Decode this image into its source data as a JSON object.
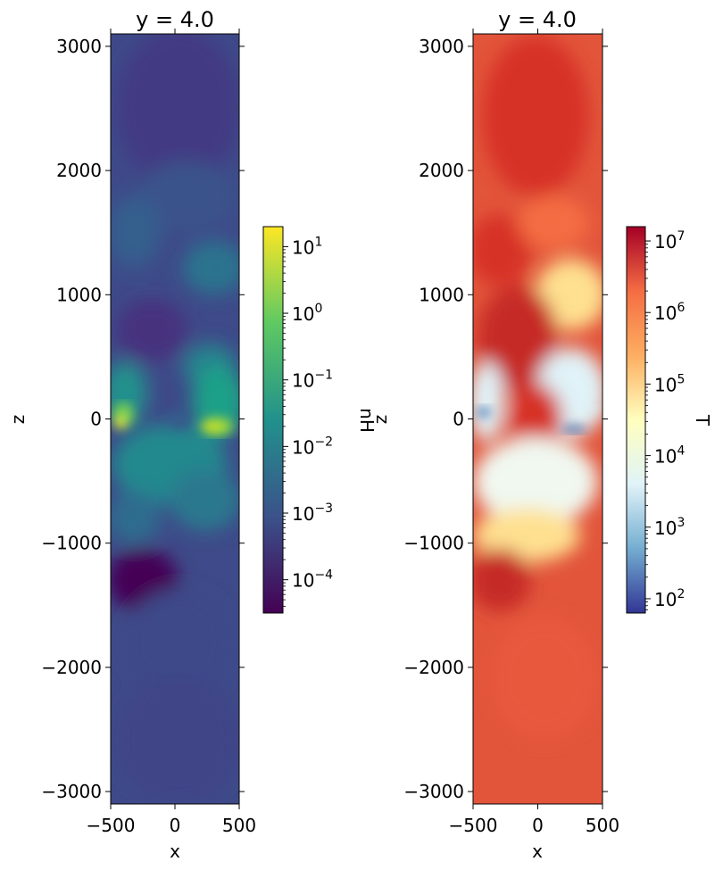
{
  "chart_data": [
    {
      "type": "heatmap",
      "title": "y = 4.0",
      "xlabel": "x",
      "ylabel": "z",
      "xlim": [
        -500,
        500
      ],
      "ylim": [
        -3100,
        3100
      ],
      "xticks": [
        -500,
        0,
        500
      ],
      "yticks": [
        -3000,
        -2000,
        -1000,
        0,
        1000,
        2000,
        3000
      ],
      "colorbar": {
        "label": "nH",
        "scale": "log",
        "range_exp": [
          -4.5,
          1.3
        ],
        "ticks_exp": [
          -4,
          -3,
          -2,
          -1,
          0,
          1
        ],
        "colormap": "viridis",
        "colors": [
          "#440154",
          "#3b528b",
          "#21918c",
          "#5ec962",
          "#fde725"
        ]
      }
    },
    {
      "type": "heatmap",
      "title": "y = 4.0",
      "xlabel": "x",
      "ylabel": "z",
      "xlim": [
        -500,
        500
      ],
      "ylim": [
        -3100,
        3100
      ],
      "xticks": [
        -500,
        0,
        500
      ],
      "yticks": [
        -3000,
        -2000,
        -1000,
        0,
        1000,
        2000,
        3000
      ],
      "colorbar": {
        "label": "T",
        "scale": "log",
        "range_exp": [
          1.8,
          7.2
        ],
        "ticks_exp": [
          2,
          3,
          4,
          5,
          6,
          7
        ],
        "colormap": "RdYlBu_r",
        "colors": [
          "#313695",
          "#74add1",
          "#e0f3f8",
          "#ffffbf",
          "#fdae61",
          "#f46d43",
          "#a50026"
        ]
      }
    }
  ]
}
